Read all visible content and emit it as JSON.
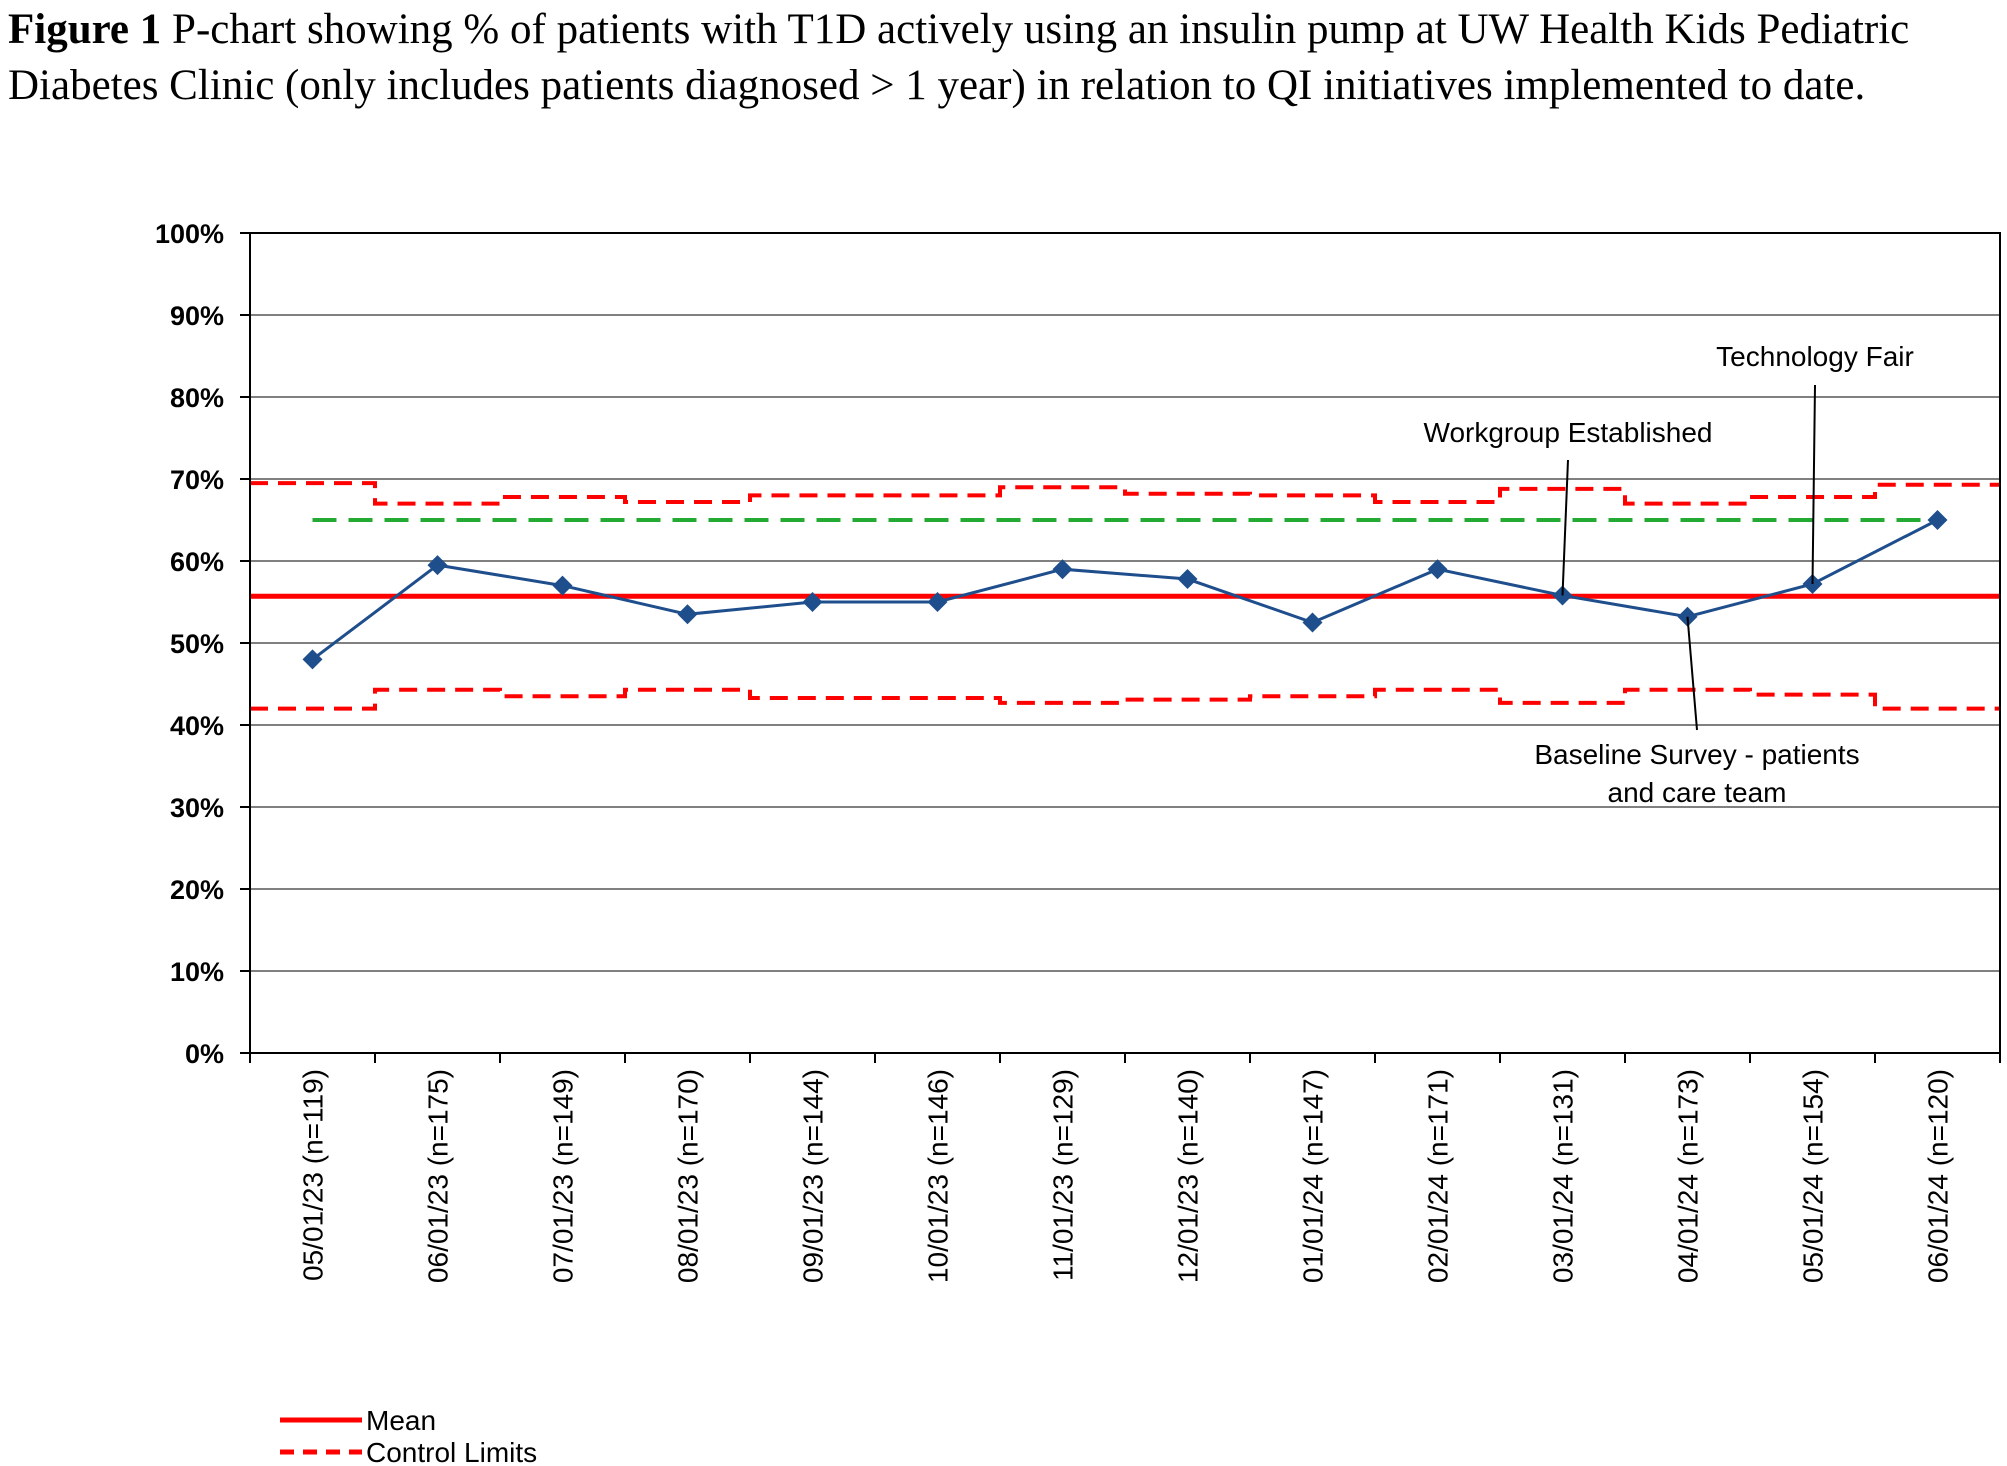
{
  "figure": {
    "label": "Figure 1",
    "caption": "P-chart showing % of patients with T1D actively using an insulin pump at UW Health Kids Pediatric Diabetes Clinic (only includes patients diagnosed > 1 year) in relation to QI initiatives implemented to date."
  },
  "chart_data": {
    "type": "line",
    "title": "",
    "xlabel": "",
    "ylabel": "",
    "ylim": [
      0,
      100
    ],
    "y_ticks": [
      "0%",
      "10%",
      "20%",
      "30%",
      "40%",
      "50%",
      "60%",
      "70%",
      "80%",
      "90%",
      "100%"
    ],
    "categories": [
      "05/01/23 (n=119)",
      "06/01/23 (n=175)",
      "07/01/23 (n=149)",
      "08/01/23 (n=170)",
      "09/01/23 (n=144)",
      "10/01/23 (n=146)",
      "11/01/23 (n=129)",
      "12/01/23 (n=140)",
      "01/01/24 (n=147)",
      "02/01/24 (n=171)",
      "03/01/24 (n=131)",
      "04/01/24 (n=173)",
      "05/01/24 (n=154)",
      "06/01/24 (n=120)"
    ],
    "series": [
      {
        "values": [
          48,
          59.5,
          57,
          53.5,
          55,
          55,
          59,
          57.8,
          52.5,
          59,
          55.8,
          53.2,
          57.2,
          65
        ],
        "color": "#1f4e8c",
        "marker": "diamond"
      },
      {
        "name": "Mean",
        "values": [
          55.7,
          55.7,
          55.7,
          55.7,
          55.7,
          55.7,
          55.7,
          55.7,
          55.7,
          55.7,
          55.7,
          55.7,
          55.7,
          55.7
        ],
        "color": "#ff0000",
        "style": "solid"
      },
      {
        "name": "Control Limits",
        "role": "upper",
        "values": [
          69.5,
          67,
          67.8,
          67.2,
          68,
          68,
          69,
          68.2,
          68,
          67.2,
          68.8,
          67,
          67.8,
          69.3
        ],
        "color": "#ff0000",
        "style": "dashed"
      },
      {
        "name": "Control Limits",
        "role": "lower",
        "values": [
          42,
          44.3,
          43.5,
          44.3,
          43.3,
          43.3,
          42.7,
          43.1,
          43.5,
          44.3,
          42.7,
          44.3,
          43.7,
          42
        ],
        "color": "#ff0000",
        "style": "dashed"
      },
      {
        "values": [
          65,
          65,
          65,
          65,
          65,
          65,
          65,
          65,
          65,
          65,
          65,
          65,
          65,
          65
        ],
        "color": "#22aa33",
        "style": "dashed"
      }
    ],
    "annotations": [
      {
        "lines": [
          "Technology Fair"
        ],
        "category_index": 12
      },
      {
        "lines": [
          "Workgroup Established"
        ],
        "category_index": 10
      },
      {
        "lines": [
          "Baseline Survey - patients",
          "and care team"
        ],
        "category_index": 11
      }
    ],
    "legend": {
      "placement": "bottom-left",
      "entries": [
        {
          "label": "Mean",
          "color": "#ff0000",
          "style": "solid"
        },
        {
          "label": "Control Limits",
          "color": "#ff0000",
          "style": "dashed"
        }
      ]
    },
    "grid": true,
    "colors": {
      "series": "#1f4e8c",
      "mean": "#ff0000",
      "limits": "#ff0000",
      "goal": "#22aa33",
      "grid": "#808080"
    }
  }
}
